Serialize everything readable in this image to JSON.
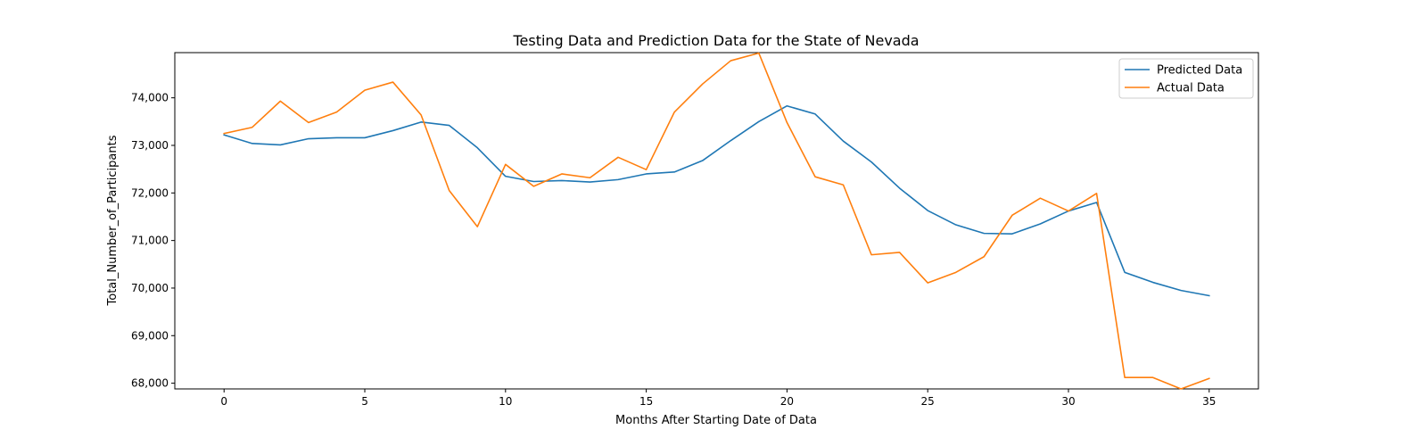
{
  "chart_data": {
    "type": "line",
    "title": "Testing Data and Prediction Data for the State of Nevada",
    "xlabel": "Months After Starting Date of Data",
    "ylabel": "Total_Number_of_Participants",
    "xlim": [
      -1.75,
      36.75
    ],
    "ylim": [
      67880,
      74950
    ],
    "x_ticks": [
      0,
      5,
      10,
      15,
      20,
      25,
      30,
      35
    ],
    "x_tick_labels": [
      "0",
      "5",
      "10",
      "15",
      "20",
      "25",
      "30",
      "35"
    ],
    "y_ticks": [
      68000,
      69000,
      70000,
      71000,
      72000,
      73000,
      74000
    ],
    "y_tick_labels": [
      "68,000",
      "69,000",
      "70,000",
      "71,000",
      "72,000",
      "73,000",
      "74,000"
    ],
    "grid": false,
    "legend_position": "top-right",
    "x": [
      0,
      1,
      2,
      3,
      4,
      5,
      6,
      7,
      8,
      9,
      10,
      11,
      12,
      13,
      14,
      15,
      16,
      17,
      18,
      19,
      20,
      21,
      22,
      23,
      24,
      25,
      26,
      27,
      28,
      29,
      30,
      31,
      32,
      33,
      34,
      35
    ],
    "series": [
      {
        "name": "Predicted Data",
        "color": "#1f77b4",
        "values": [
          73220,
          73040,
          73010,
          73140,
          73160,
          73160,
          73310,
          73490,
          73420,
          72950,
          72350,
          72240,
          72260,
          72230,
          72280,
          72400,
          72440,
          72680,
          73100,
          73500,
          73830,
          73660,
          73090,
          72650,
          72100,
          71630,
          71330,
          71150,
          71140,
          71350,
          71620,
          71800,
          70330,
          70120,
          69950,
          69840
        ]
      },
      {
        "name": "Actual Data",
        "color": "#ff7f0e",
        "values": [
          73250,
          73380,
          73930,
          73480,
          73700,
          74160,
          74330,
          73640,
          72050,
          71290,
          72600,
          72140,
          72400,
          72320,
          72750,
          72490,
          73700,
          74290,
          74780,
          74940,
          73480,
          72340,
          72170,
          70700,
          70750,
          70110,
          70330,
          70660,
          71530,
          71890,
          71620,
          71990,
          68120,
          68120,
          67880,
          68100
        ]
      }
    ]
  }
}
